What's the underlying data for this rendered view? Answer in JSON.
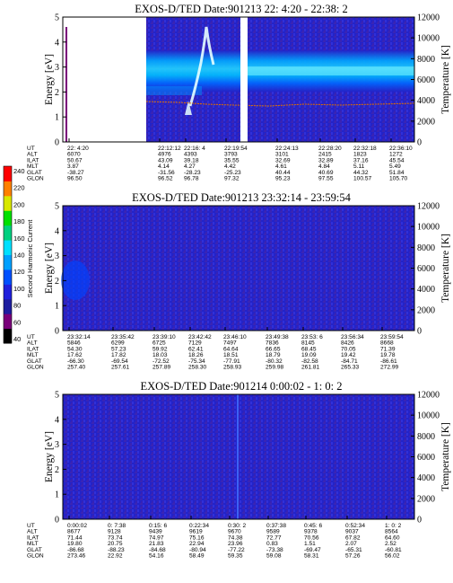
{
  "colors": {
    "background": "#2323c8",
    "grain_light": "#3030dd",
    "grain_dark": "#5a1f8e",
    "cyan": "#22d5ff",
    "teal": "#00a8ff",
    "white_mark": "#ffffff",
    "temperature_trace": "#e07000"
  },
  "colorbar": {
    "label": "Second Harmonic Current",
    "ticks": [
      "40",
      "60",
      "80",
      "100",
      "120",
      "140",
      "160",
      "180",
      "200",
      "220",
      "240"
    ],
    "colors": [
      "#000000",
      "#7a007a",
      "#1e1ea0",
      "#2020dc",
      "#0050ff",
      "#00a0ff",
      "#00e0ff",
      "#00d080",
      "#00e000",
      "#d8e800",
      "#ff8000",
      "#ff0000"
    ]
  },
  "chart_data": [
    {
      "type": "heatmap",
      "title": "EXOS-D/TED   Date:901213   22: 4:20 - 22:38: 2",
      "ylabel": "Energy [eV]",
      "y2label": "Temperature [K]",
      "ylim": [
        0,
        5
      ],
      "y2lim": [
        0,
        12000
      ],
      "yticks": [
        "0",
        "1",
        "2",
        "3",
        "4",
        "5"
      ],
      "y2ticks": [
        "0",
        "2000",
        "4000",
        "6000",
        "8000",
        "10000",
        "12000"
      ],
      "data_gaps": [
        [
          0.0,
          0.36
        ],
        [
          0.79,
          0.81
        ]
      ],
      "features": {
        "cyan_band": [
          1.0,
          2.6
        ],
        "temperature_trace_k": 4000
      },
      "table": {
        "labels": [
          "UT",
          "ALT",
          "ILAT",
          "MLT",
          "GLAT",
          "GLON"
        ],
        "columns": [
          [
            "22: 4:20",
            "6070",
            "50.67",
            "3.87",
            "-38.27",
            "96.50"
          ],
          [
            "22:12:12",
            "4976",
            "43.09",
            "4.14",
            "-31.56",
            "96.52"
          ],
          [
            "22:16: 4",
            "4393",
            "39.18",
            "4.27",
            "-28.23",
            "96.78"
          ],
          [
            "22:19:54",
            "3793",
            "35.55",
            "4.42",
            "-25.23",
            "97.32"
          ],
          [
            "22:24:13",
            "3101",
            "32.69",
            "4.61",
            "40.44",
            "95.23"
          ],
          [
            "22:28:20",
            "2415",
            "32.89",
            "4.84",
            "40.69",
            "97.55"
          ],
          [
            "22:32:18",
            "1823",
            "37.16",
            "5.11",
            "44.32",
            "100.57"
          ],
          [
            "22:36:10",
            "1272",
            "45.54",
            "5.49",
            "51.84",
            "105.70"
          ]
        ]
      }
    },
    {
      "type": "heatmap",
      "title": "EXOS-D/TED   Date:901213   23:32:14 - 23:59:54",
      "ylabel": "Energy [eV]",
      "y2label": "Temperature [K]",
      "ylim": [
        0,
        5
      ],
      "y2lim": [
        0,
        12000
      ],
      "yticks": [
        "0",
        "1",
        "2",
        "3",
        "4",
        "5"
      ],
      "y2ticks": [
        "0",
        "2000",
        "4000",
        "6000",
        "8000",
        "10000",
        "12000"
      ],
      "table": {
        "labels": [
          "UT",
          "ALT",
          "ILAT",
          "MLT",
          "GLAT",
          "GLON"
        ],
        "columns": [
          [
            "23:32:14",
            "5846",
            "54.30",
            "17.62",
            "-66.30",
            "257.40"
          ],
          [
            "23:35:42",
            "6299",
            "57.23",
            "17.82",
            "-69.54",
            "257.61"
          ],
          [
            "23:39:10",
            "6725",
            "59.92",
            "18.03",
            "-72.52",
            "257.89"
          ],
          [
            "23:42:42",
            "7129",
            "62.41",
            "18.26",
            "-75.34",
            "258.30"
          ],
          [
            "23:46:10",
            "7497",
            "64.64",
            "18.51",
            "-77.91",
            "258.93"
          ],
          [
            "23:49:38",
            "7836",
            "66.65",
            "18.79",
            "-80.32",
            "259.98"
          ],
          [
            "23:53: 6",
            "8145",
            "68.45",
            "19.09",
            "-82.58",
            "261.81"
          ],
          [
            "23:56:34",
            "8426",
            "70.05",
            "19.42",
            "-84.71",
            "265.33"
          ],
          [
            "23:59:54",
            "8668",
            "71.39",
            "19.78",
            "-86.61",
            "272.99"
          ]
        ]
      }
    },
    {
      "type": "heatmap",
      "title": "EXOS-D/TED   Date:901214   0:00:02 - 1: 0: 2",
      "ylabel": "Energy [eV]",
      "y2label": "Temperature [K]",
      "ylim": [
        0,
        5
      ],
      "y2lim": [
        0,
        12000
      ],
      "yticks": [
        "0",
        "1",
        "2",
        "3",
        "4",
        "5"
      ],
      "y2ticks": [
        "0",
        "2000",
        "4000",
        "6000",
        "8000",
        "10000",
        "12000"
      ],
      "table": {
        "labels": [
          "UT",
          "ALT",
          "ILAT",
          "MLT",
          "GLAT",
          "GLON"
        ],
        "columns": [
          [
            "0:00:02",
            "8677",
            "71.44",
            "19.80",
            "-86.68",
            "273.46"
          ],
          [
            "0: 7:38",
            "9128",
            "73.74",
            "20.75",
            "-88.23",
            "22.92"
          ],
          [
            "0:15: 6",
            "9439",
            "74.97",
            "21.83",
            "-84.68",
            "54.16"
          ],
          [
            "0:22:34",
            "9619",
            "75.16",
            "22.94",
            "-80.94",
            "58.49"
          ],
          [
            "0:30: 2",
            "9670",
            "74.38",
            "23.96",
            "-77.22",
            "59.35"
          ],
          [
            "0:37:38",
            "9589",
            "72.77",
            "0.83",
            "-73.38",
            "59.08"
          ],
          [
            "0:45: 6",
            "9378",
            "70.56",
            "1.51",
            "-69.47",
            "58.31"
          ],
          [
            "0:52:34",
            "9037",
            "67.82",
            "2.07",
            "-65.31",
            "57.26"
          ],
          [
            "1: 0: 2",
            "8564",
            "64.60",
            "2.52",
            "-60.81",
            "56.02"
          ]
        ]
      }
    }
  ]
}
